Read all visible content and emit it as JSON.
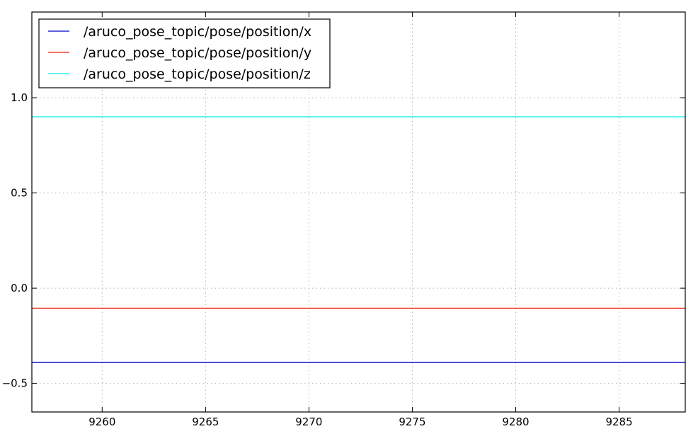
{
  "chart_data": {
    "type": "line",
    "title": "",
    "xlabel": "",
    "ylabel": "",
    "xlim": [
      9256.6,
      9288.2
    ],
    "ylim": [
      -0.65,
      1.45
    ],
    "xticks": [
      9260,
      9265,
      9270,
      9275,
      9280,
      9285
    ],
    "yticks": [
      -0.5,
      0.0,
      0.5,
      1.0
    ],
    "xtick_labels": [
      "9260",
      "9265",
      "9270",
      "9275",
      "9280",
      "9285"
    ],
    "ytick_labels": [
      "−0.5",
      "0.0",
      "0.5",
      "1.0"
    ],
    "grid": true,
    "legend_position": "top-left",
    "series": [
      {
        "name": "/aruco_pose_topic/pose/position/x",
        "color": "#0000cc",
        "x": [
          9256.6,
          9288.2
        ],
        "y": [
          -0.39,
          -0.39
        ]
      },
      {
        "name": "/aruco_pose_topic/pose/position/y",
        "color": "#ee2211",
        "x": [
          9256.6,
          9288.2
        ],
        "y": [
          -0.105,
          -0.105
        ]
      },
      {
        "name": "/aruco_pose_topic/pose/position/z",
        "color": "#00eeee",
        "x": [
          9256.6,
          9288.2
        ],
        "y": [
          0.9,
          0.9
        ]
      }
    ]
  }
}
